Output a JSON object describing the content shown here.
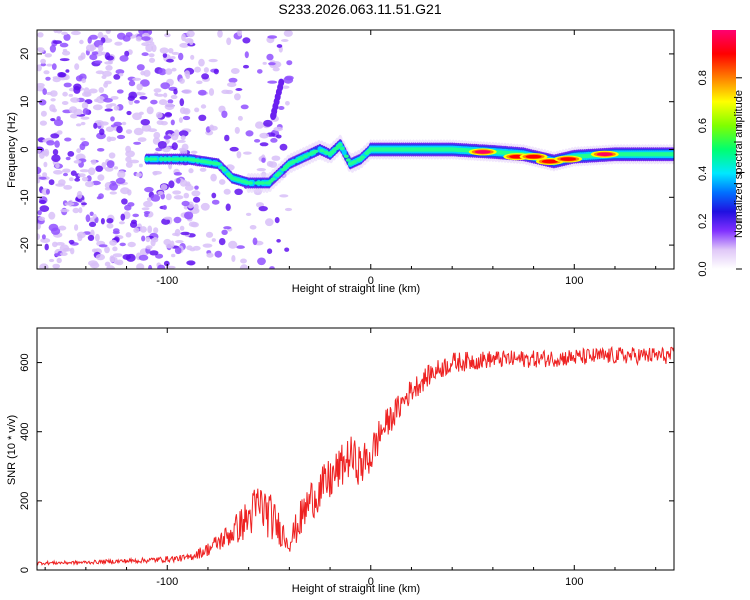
{
  "title": "S233.2026.063.11.51.G21",
  "colors": {
    "snr_line": "#ee2222",
    "colormap": [
      "#ffffff",
      "#e8d8f8",
      "#9040ff",
      "#4000e0",
      "#0060ff",
      "#00e0ff",
      "#00ff80",
      "#80ff00",
      "#ffff00",
      "#ff8000",
      "#ff0000",
      "#ff0060"
    ]
  },
  "chart_data": [
    {
      "type": "heatmap",
      "id": "spectrogram",
      "xlabel": "Height of straight line (km)",
      "ylabel": "Frequency (Hz)",
      "xlim": [
        -164,
        149
      ],
      "ylim": [
        -25,
        25
      ],
      "xticks": [
        -100,
        0,
        100
      ],
      "xtick_labels": [
        "-100",
        "0",
        "100"
      ],
      "yticks": [
        -20,
        -10,
        0,
        10,
        20
      ],
      "ytick_labels": [
        "-20",
        "-10",
        "0",
        "10",
        "20"
      ],
      "ridge": {
        "x": [
          -110,
          -90,
          -75,
          -68,
          -60,
          -50,
          -45,
          -40,
          -35,
          -30,
          -25,
          -20,
          -15,
          -10,
          -5,
          0,
          20,
          40,
          60,
          75,
          85,
          90,
          100,
          120,
          149
        ],
        "freq": [
          -2,
          -2,
          -3,
          -6,
          -7,
          -7,
          -5,
          -3,
          -2,
          -1,
          0,
          -1,
          1,
          -3,
          -2,
          0,
          0,
          0,
          -0.5,
          -1,
          -2,
          -2.5,
          -1.5,
          -1,
          -1
        ]
      },
      "peaks": [
        {
          "x": 55,
          "freq": -0.5,
          "amplitude": 0.95
        },
        {
          "x": 72,
          "freq": -1.5,
          "amplitude": 0.9
        },
        {
          "x": 80,
          "freq": -1.5,
          "amplitude": 0.85
        },
        {
          "x": 88,
          "freq": -2.5,
          "amplitude": 0.9
        },
        {
          "x": 97,
          "freq": -2,
          "amplitude": 0.85
        },
        {
          "x": 115,
          "freq": -1,
          "amplitude": 0.95
        }
      ],
      "isolated_feature": {
        "x_range": [
          -48,
          -44
        ],
        "freq_range": [
          7,
          14
        ]
      },
      "colorbar": {
        "label": "Normalized spectral amplitude",
        "range": [
          0,
          1
        ],
        "ticks": [
          0.0,
          0.2,
          0.4,
          0.6,
          0.8
        ],
        "tick_labels": [
          "0.0",
          "0.2",
          "0.4",
          "0.6",
          "0.8"
        ]
      }
    },
    {
      "type": "line",
      "id": "snr",
      "xlabel": "Height of straight line (km)",
      "ylabel": "SNR (10 * v/v)",
      "xlim": [
        -164,
        149
      ],
      "ylim": [
        0,
        700
      ],
      "xticks": [
        -100,
        0,
        100
      ],
      "xtick_labels": [
        "-100",
        "0",
        "100"
      ],
      "yticks": [
        0,
        200,
        400,
        600
      ],
      "ytick_labels": [
        "0",
        "200",
        "400",
        "600"
      ],
      "envelope": {
        "x": [
          -164,
          -140,
          -110,
          -90,
          -80,
          -70,
          -60,
          -55,
          -50,
          -45,
          -40,
          -35,
          -30,
          -20,
          -10,
          -5,
          0,
          5,
          10,
          20,
          30,
          40,
          60,
          80,
          100,
          120,
          149
        ],
        "mean": [
          20,
          22,
          28,
          35,
          60,
          100,
          150,
          190,
          160,
          120,
          80,
          140,
          200,
          260,
          330,
          300,
          330,
          400,
          440,
          520,
          570,
          600,
          610,
          610,
          615,
          620,
          620
        ],
        "spread": [
          10,
          10,
          15,
          20,
          40,
          70,
          120,
          150,
          140,
          100,
          60,
          110,
          120,
          130,
          120,
          120,
          120,
          100,
          80,
          70,
          60,
          60,
          50,
          50,
          50,
          50,
          50
        ]
      }
    }
  ]
}
